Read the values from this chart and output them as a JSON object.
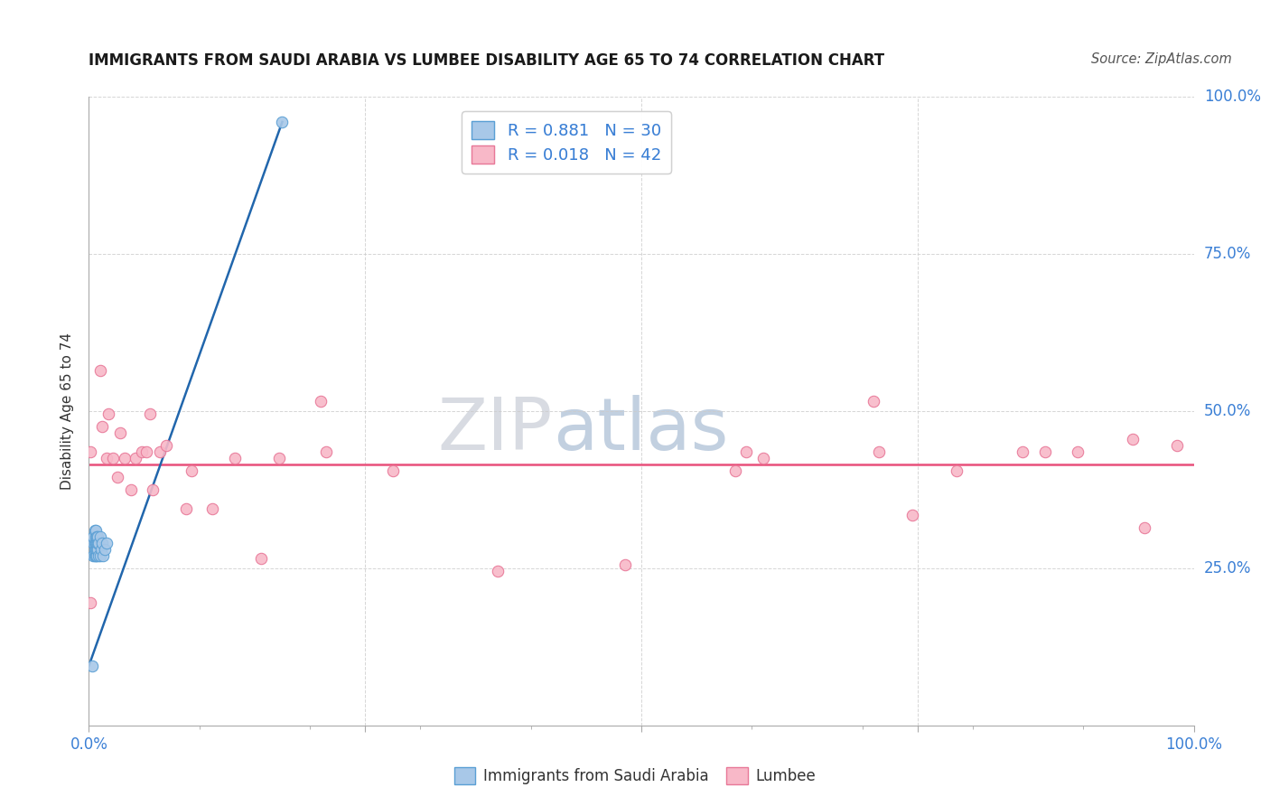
{
  "title": "IMMIGRANTS FROM SAUDI ARABIA VS LUMBEE DISABILITY AGE 65 TO 74 CORRELATION CHART",
  "source": "Source: ZipAtlas.com",
  "ylabel": "Disability Age 65 to 74",
  "xlim": [
    0.0,
    1.0
  ],
  "ylim": [
    0.0,
    1.0
  ],
  "blue_color": "#a8c8e8",
  "blue_edge_color": "#5a9fd4",
  "blue_line_color": "#2166ac",
  "pink_color": "#f8b8c8",
  "pink_edge_color": "#e87898",
  "pink_line_color": "#e8507a",
  "r_n_color": "#3a7fd5",
  "text_color": "#333333",
  "background_color": "#ffffff",
  "grid_color": "#cccccc",
  "watermark_zip_color": "#c8d0dc",
  "watermark_atlas_color": "#a8b8d0",
  "saudi_x": [
    0.003,
    0.004,
    0.004,
    0.004,
    0.005,
    0.005,
    0.005,
    0.005,
    0.006,
    0.006,
    0.006,
    0.006,
    0.006,
    0.007,
    0.007,
    0.007,
    0.007,
    0.008,
    0.008,
    0.008,
    0.009,
    0.009,
    0.01,
    0.01,
    0.011,
    0.012,
    0.013,
    0.014,
    0.016,
    0.175
  ],
  "saudi_y": [
    0.095,
    0.27,
    0.29,
    0.3,
    0.27,
    0.28,
    0.29,
    0.31,
    0.27,
    0.28,
    0.29,
    0.3,
    0.31,
    0.27,
    0.28,
    0.29,
    0.3,
    0.28,
    0.29,
    0.3,
    0.27,
    0.29,
    0.27,
    0.3,
    0.28,
    0.29,
    0.27,
    0.28,
    0.29,
    0.96
  ],
  "lumbee_x": [
    0.001,
    0.001,
    0.01,
    0.012,
    0.016,
    0.018,
    0.022,
    0.026,
    0.028,
    0.032,
    0.038,
    0.042,
    0.048,
    0.052,
    0.055,
    0.058,
    0.064,
    0.07,
    0.088,
    0.093,
    0.112,
    0.132,
    0.156,
    0.172,
    0.21,
    0.215,
    0.275,
    0.37,
    0.485,
    0.585,
    0.595,
    0.61,
    0.71,
    0.715,
    0.745,
    0.785,
    0.845,
    0.865,
    0.895,
    0.945,
    0.955,
    0.985
  ],
  "lumbee_y": [
    0.195,
    0.435,
    0.565,
    0.475,
    0.425,
    0.495,
    0.425,
    0.395,
    0.465,
    0.425,
    0.375,
    0.425,
    0.435,
    0.435,
    0.495,
    0.375,
    0.435,
    0.445,
    0.345,
    0.405,
    0.345,
    0.425,
    0.265,
    0.425,
    0.515,
    0.435,
    0.405,
    0.245,
    0.255,
    0.405,
    0.435,
    0.425,
    0.515,
    0.435,
    0.335,
    0.405,
    0.435,
    0.435,
    0.435,
    0.455,
    0.315,
    0.445
  ],
  "saudi_trend_x": [
    0.0,
    0.175
  ],
  "saudi_trend_y": [
    0.095,
    0.96
  ],
  "lumbee_trend_x": [
    0.0,
    1.0
  ],
  "lumbee_trend_y": [
    0.415,
    0.415
  ],
  "marker_size": 80
}
